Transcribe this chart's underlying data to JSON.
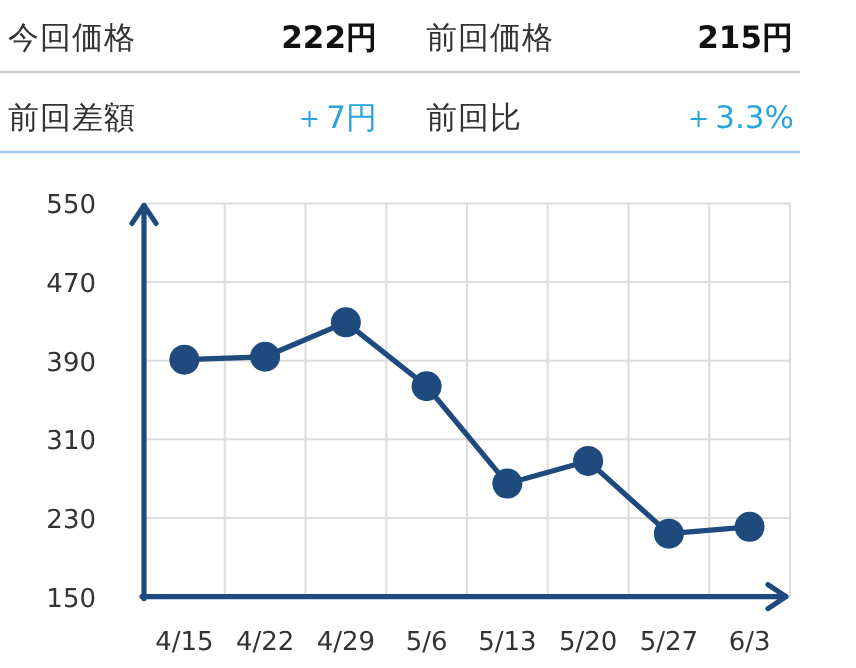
{
  "chart_data": [
    {
      "type": "other",
      "annotations": [
        "今回価格",
        "222円",
        "前回価格",
        "215円",
        "前回差額",
        "＋7円",
        "前回比",
        "＋3.3%"
      ]
    },
    {
      "type": "line",
      "categories": [
        "4/15",
        "4/22",
        "4/29",
        "5/6",
        "5/13",
        "5/20",
        "5/27",
        "6/3"
      ],
      "values": [
        391,
        394,
        429,
        364,
        265,
        288,
        214,
        221
      ],
      "color": "#1f4a7e",
      "ylim": [
        150,
        550
      ],
      "yticks": [
        150,
        230,
        310,
        390,
        470,
        550
      ],
      "grid": true,
      "marker": "circle"
    }
  ]
}
